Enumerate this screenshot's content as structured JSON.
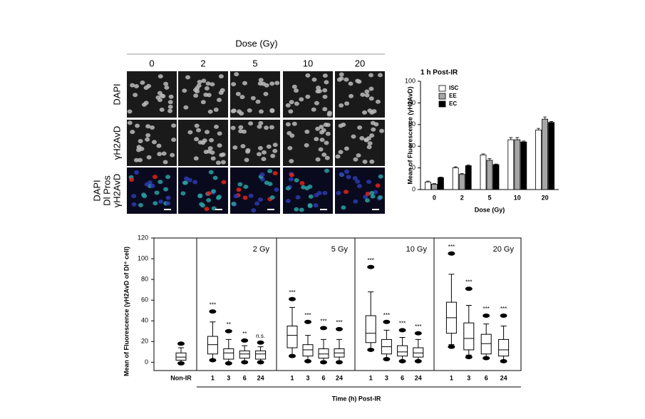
{
  "micrograph": {
    "title": "Dose (Gy)",
    "doses": [
      "0",
      "2",
      "5",
      "10",
      "20"
    ],
    "row_labels": [
      [
        "DAPI"
      ],
      [
        "γH2AvD"
      ],
      [
        "DAPI",
        "Dl Pros",
        "γH2AvD"
      ]
    ]
  },
  "chart_data": [
    {
      "type": "bar",
      "title": "1 h Post-IR",
      "x_label": "Dose (Gy)",
      "y_label": "Mean of Fluorescence  (γH2AvD)",
      "categories": [
        "0",
        "2",
        "5",
        "10",
        "20"
      ],
      "series": [
        {
          "name": "ISC",
          "color": "#ffffff",
          "values": [
            7,
            20,
            32,
            46,
            55
          ],
          "errors": [
            0.8,
            1,
            1,
            2,
            1.5
          ]
        },
        {
          "name": "EE",
          "color": "#a6a6a6",
          "values": [
            5,
            14,
            27,
            46,
            65
          ],
          "errors": [
            0.5,
            0.8,
            1.5,
            2,
            2
          ]
        },
        {
          "name": "EC",
          "color": "#000000",
          "values": [
            11,
            22,
            23,
            44,
            62
          ],
          "errors": [
            0.5,
            0.6,
            0.6,
            0.8,
            0.8
          ]
        }
      ],
      "ylim": [
        0,
        100
      ],
      "yticks": [
        0,
        20,
        40,
        60,
        80,
        100
      ],
      "legend": "top-left"
    },
    {
      "type": "box",
      "x_label": "Time (h) Post-IR",
      "y_label": "Mean of Fluorescence (γH2AvD of Dl⁺ cell)",
      "categories": [
        "Non-IR",
        "1",
        "3",
        "6",
        "24",
        "1",
        "3",
        "6",
        "24",
        "1",
        "3",
        "6",
        "24",
        "1",
        "3",
        "6",
        "24"
      ],
      "panel_labels": [
        "2 Gy",
        "5 Gy",
        "10 Gy",
        "20 Gy"
      ],
      "annotations": [
        null,
        "***",
        "**",
        "**",
        "n.s.",
        "***",
        "***",
        "***",
        "***",
        "***",
        "***",
        "***",
        "***",
        "***",
        "***",
        "***",
        "***"
      ],
      "boxes": [
        {
          "min": -1,
          "whisker_low": 0,
          "q1": 2,
          "median": 5,
          "q3": 9,
          "whisker_high": 14,
          "max": 18
        },
        {
          "min": 2,
          "whisker_low": 3,
          "q1": 8,
          "median": 17,
          "q3": 25,
          "whisker_high": 39,
          "max": 49
        },
        {
          "min": -1,
          "whisker_low": 0,
          "q1": 3,
          "median": 9,
          "q3": 13,
          "whisker_high": 22,
          "max": 30
        },
        {
          "min": 0,
          "whisker_low": 1,
          "q1": 4,
          "median": 8,
          "q3": 11,
          "whisker_high": 16,
          "max": 21
        },
        {
          "min": 0,
          "whisker_low": 0,
          "q1": 3,
          "median": 8,
          "q3": 11,
          "whisker_high": 15,
          "max": 19
        },
        {
          "min": 6,
          "whisker_low": 7,
          "q1": 14,
          "median": 26,
          "q3": 35,
          "whisker_high": 53,
          "max": 61
        },
        {
          "min": 1,
          "whisker_low": 2,
          "q1": 6,
          "median": 12,
          "q3": 17,
          "whisker_high": 26,
          "max": 39
        },
        {
          "min": 0,
          "whisker_low": 1,
          "q1": 4,
          "median": 8,
          "q3": 13,
          "whisker_high": 22,
          "max": 33
        },
        {
          "min": 0,
          "whisker_low": 1,
          "q1": 5,
          "median": 9,
          "q3": 13,
          "whisker_high": 22,
          "max": 32
        },
        {
          "min": 12,
          "whisker_low": 13,
          "q1": 19,
          "median": 28,
          "q3": 45,
          "whisker_high": 68,
          "max": 92
        },
        {
          "min": 3,
          "whisker_low": 4,
          "q1": 8,
          "median": 15,
          "q3": 22,
          "whisker_high": 31,
          "max": 39
        },
        {
          "min": 1,
          "whisker_low": 2,
          "q1": 6,
          "median": 10,
          "q3": 16,
          "whisker_high": 24,
          "max": 31
        },
        {
          "min": 1,
          "whisker_low": 2,
          "q1": 5,
          "median": 9,
          "q3": 14,
          "whisker_high": 22,
          "max": 28
        },
        {
          "min": 15,
          "whisker_low": 17,
          "q1": 28,
          "median": 43,
          "q3": 58,
          "whisker_high": 85,
          "max": 105
        },
        {
          "min": 5,
          "whisker_low": 7,
          "q1": 12,
          "median": 23,
          "q3": 38,
          "whisker_high": 55,
          "max": 71
        },
        {
          "min": 4,
          "whisker_low": 5,
          "q1": 8,
          "median": 18,
          "q3": 27,
          "whisker_high": 37,
          "max": 45
        },
        {
          "min": 1,
          "whisker_low": 2,
          "q1": 6,
          "median": 12,
          "q3": 22,
          "whisker_high": 35,
          "max": 45
        }
      ],
      "ylim": [
        -8,
        120
      ],
      "yticks": [
        0,
        20,
        40,
        60,
        80,
        100,
        120
      ]
    }
  ]
}
